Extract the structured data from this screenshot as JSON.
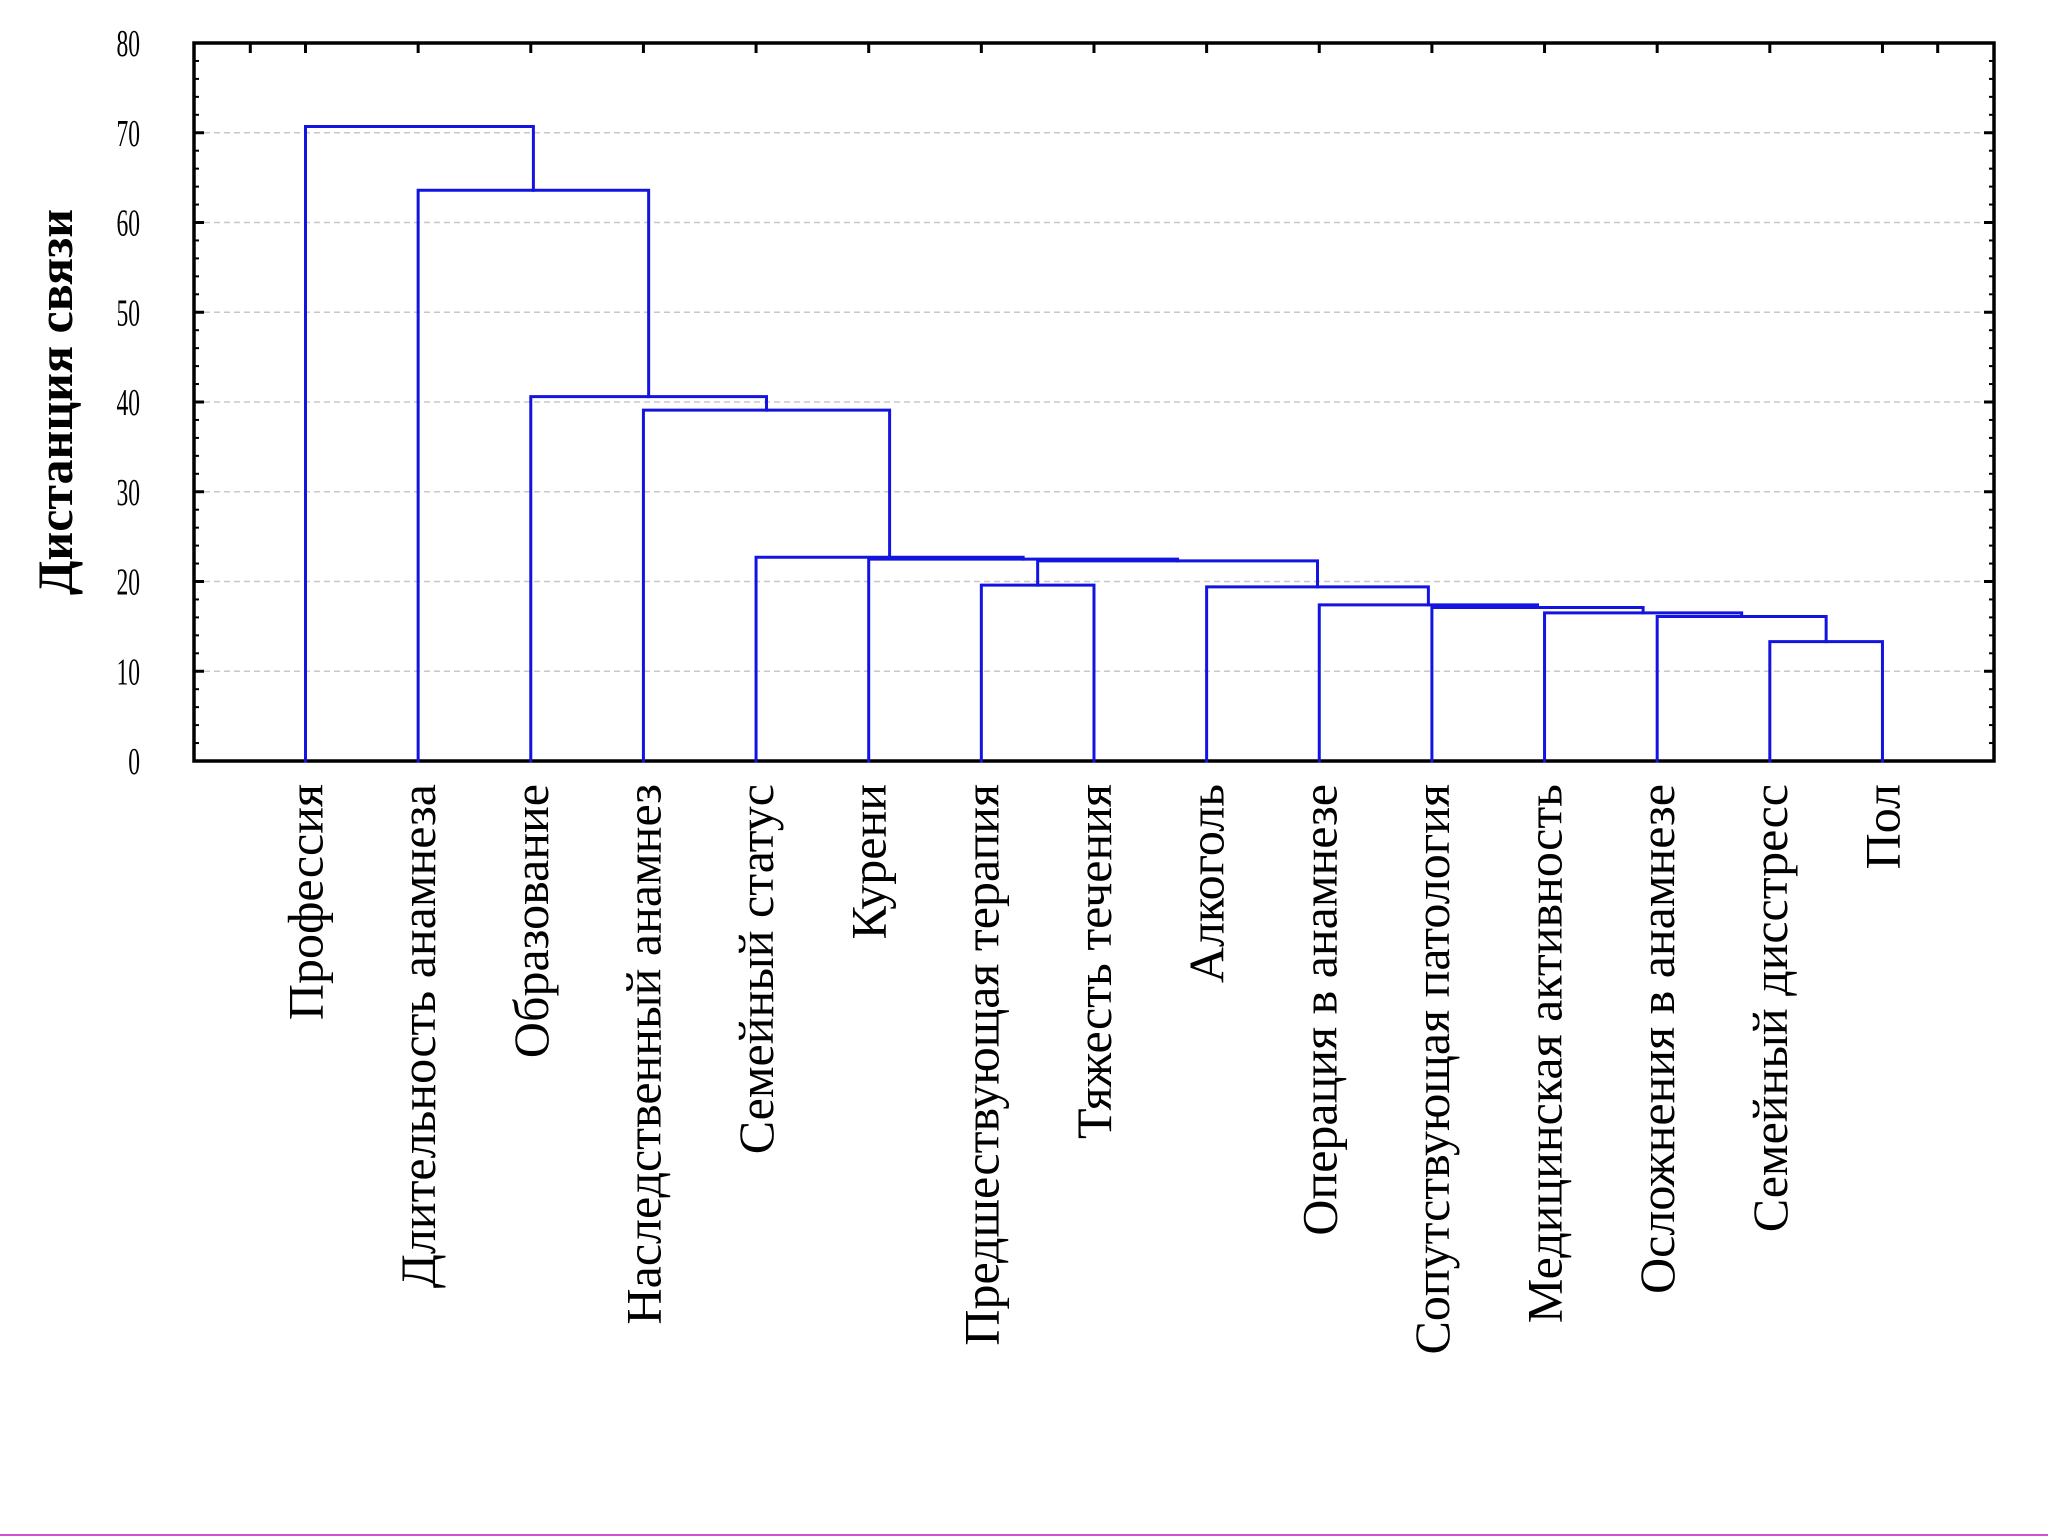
{
  "chart_data": {
    "type": "dendrogram",
    "ylabel": "Дистанция связи",
    "xlabel": "",
    "title": "",
    "ylim": [
      0,
      80
    ],
    "y_ticks": [
      0,
      10,
      20,
      30,
      40,
      50,
      60,
      70,
      80
    ],
    "grid": "horizontal dashed",
    "leaves": [
      "Профессия",
      "Длительность анамнеза",
      "Образование",
      "Наследственный анамнез",
      "Семейный статус",
      "Курени",
      "Предшествующая терапия",
      "Тяжесть течения",
      "Алкоголь",
      "Операция в анамнезе",
      "Сопутствующая патология",
      "Медицинская активность",
      "Осложнения в анамнезе",
      "Семейный дисстресс",
      "Пол"
    ],
    "merges": [
      {
        "left": "L13",
        "right": "L14",
        "height": 13.3,
        "id": "C1"
      },
      {
        "left": "L12",
        "right": "C1",
        "height": 16.1,
        "id": "C2"
      },
      {
        "left": "L11",
        "right": "C2",
        "height": 16.5,
        "id": "C3"
      },
      {
        "left": "L10",
        "right": "C3",
        "height": 17.1,
        "id": "C4"
      },
      {
        "left": "L9",
        "right": "C4",
        "height": 17.4,
        "id": "C5"
      },
      {
        "left": "L8",
        "right": "C5",
        "height": 19.4,
        "id": "C6"
      },
      {
        "left": "L6",
        "right": "L7",
        "height": 19.6,
        "id": "C7"
      },
      {
        "left": "C7",
        "right": "C6",
        "height": 22.3,
        "id": "C8"
      },
      {
        "left": "L5",
        "right": "C8",
        "height": 22.5,
        "id": "C9"
      },
      {
        "left": "L4",
        "right": "C9",
        "height": 22.7,
        "id": "C10"
      },
      {
        "left": "L3",
        "right": "C10",
        "height": 39.1,
        "id": "C11"
      },
      {
        "left": "L2",
        "right": "C11",
        "height": 40.6,
        "id": "C12"
      },
      {
        "left": "L1",
        "right": "C12",
        "height": 63.6,
        "id": "C13"
      },
      {
        "left": "L0",
        "right": "C13",
        "height": 70.7,
        "id": "C14"
      }
    ]
  },
  "colors": {
    "links": "#1414e0",
    "frame": "#000000",
    "grid": "#c8c8c8"
  }
}
